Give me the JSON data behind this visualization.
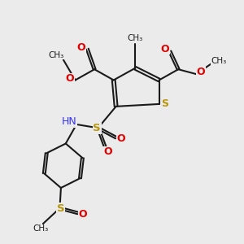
{
  "bg_color": "#ebebeb",
  "bond_color": "#1a1a1a",
  "S_color": "#b8960c",
  "O_color": "#e00000",
  "N_color": "#3333ff",
  "lw": 1.5,
  "figsize": [
    3.0,
    3.0
  ],
  "dpi": 100,
  "xlim": [
    0,
    10
  ],
  "ylim": [
    0,
    10
  ]
}
